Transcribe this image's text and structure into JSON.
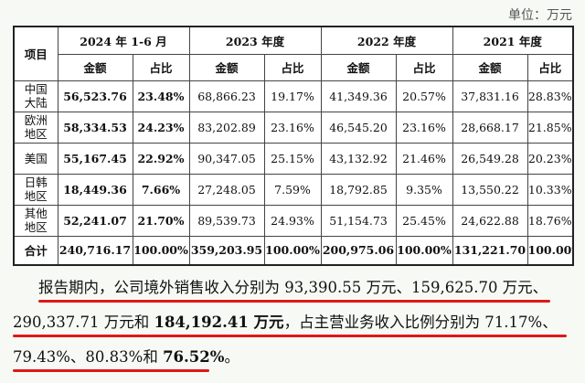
{
  "unit_note": "单位：万元",
  "table": {
    "item_header": "项目",
    "periods": [
      "2024 年 1-6 月",
      "2023 年度",
      "2022 年度",
      "2021 年度"
    ],
    "sub_headers": {
      "amount": "金额",
      "ratio": "占比"
    },
    "rows": [
      {
        "label": "中国大陆",
        "values": [
          "56,523.76",
          "23.48%",
          "68,866.23",
          "19.17%",
          "41,349.36",
          "20.57%",
          "37,831.16",
          "28.83%"
        ]
      },
      {
        "label": "欧洲地区",
        "values": [
          "58,334.53",
          "24.23%",
          "83,202.89",
          "23.16%",
          "46,545.20",
          "23.16%",
          "28,668.17",
          "21.85%"
        ]
      },
      {
        "label": "美国",
        "values": [
          "55,167.45",
          "22.92%",
          "90,347.05",
          "25.15%",
          "43,132.92",
          "21.46%",
          "26,549.28",
          "20.23%"
        ]
      },
      {
        "label": "日韩地区",
        "values": [
          "18,449.36",
          "7.66%",
          "27,248.05",
          "7.59%",
          "18,792.85",
          "9.35%",
          "13,550.22",
          "10.33%"
        ]
      },
      {
        "label": "其他地区",
        "values": [
          "52,241.07",
          "21.70%",
          "89,539.73",
          "24.93%",
          "51,154.73",
          "25.45%",
          "24,622.88",
          "18.76%"
        ]
      }
    ],
    "total": {
      "label": "合计",
      "values": [
        "240,716.17",
        "100.00%",
        "359,203.95",
        "100.00%",
        "200,975.06",
        "100.00%",
        "131,221.70",
        "100.00%"
      ]
    }
  },
  "paragraph": {
    "line1": "报告期内，公司境外销售收入分别为 93,390.55 万元、159,625.70 万元、",
    "line2a": "290,337.71 万元和 ",
    "line2b": "184,192.41 万元",
    "line2c": "，占主营业务收入比例分别为 71.17%、",
    "line3a": "79.43%、80.83%和 ",
    "line3b": "76.52%",
    "line3c": "。"
  },
  "colors": {
    "underline": "#e01818",
    "background": "#f7faf4"
  }
}
